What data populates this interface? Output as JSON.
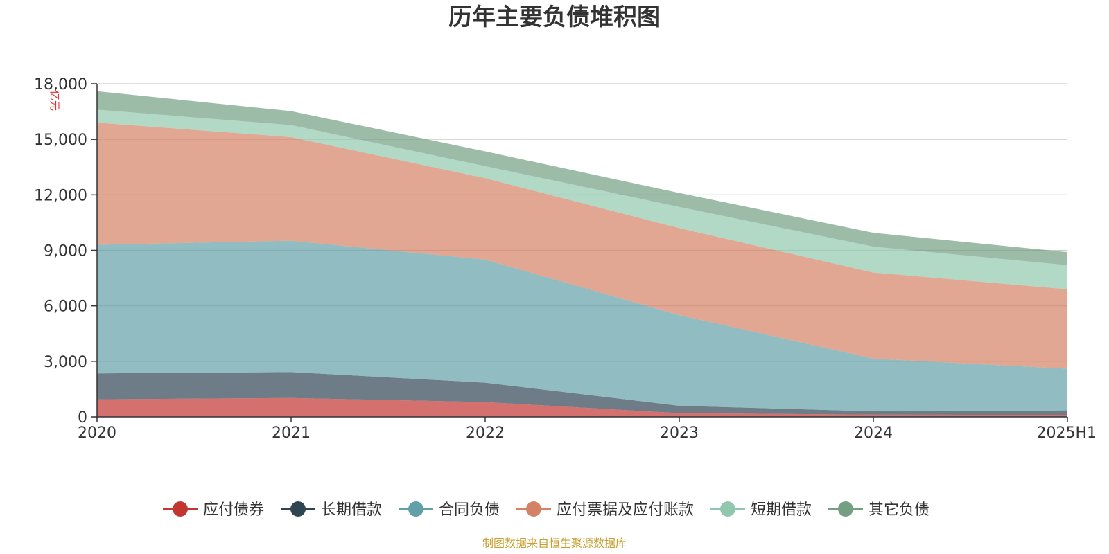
{
  "chart_data": {
    "type": "area",
    "stacked": true,
    "title": "历年主要负债堆积图",
    "unit_label": "亿元",
    "categories": [
      "2020",
      "2021",
      "2022",
      "2023",
      "2024",
      "2025H1"
    ],
    "y_ticks": [
      "0",
      "3,000",
      "6,000",
      "9,000",
      "12,000",
      "15,000",
      "18,000"
    ],
    "ylim": [
      0,
      18000
    ],
    "grid": true,
    "legend_position": "bottom",
    "series": [
      {
        "name": "应付债券",
        "color": "#c23531",
        "values": [
          950,
          1020,
          800,
          200,
          120,
          100
        ]
      },
      {
        "name": "长期借款",
        "color": "#2f4554",
        "values": [
          1400,
          1400,
          1050,
          400,
          180,
          250
        ]
      },
      {
        "name": "合同负债",
        "color": "#61a0a8",
        "values": [
          6950,
          7100,
          6650,
          4900,
          2850,
          2250
        ]
      },
      {
        "name": "应付票据及应付账款",
        "color": "#d48265",
        "values": [
          6600,
          5600,
          4400,
          4700,
          4650,
          4300
        ]
      },
      {
        "name": "短期借款",
        "color": "#91c7ae",
        "values": [
          700,
          650,
          650,
          1150,
          1400,
          1300
        ]
      },
      {
        "name": "其它负债",
        "color": "#749f83",
        "values": [
          1000,
          750,
          800,
          750,
          750,
          700
        ]
      }
    ],
    "source": "制图数据来自恒生聚源数据库"
  }
}
